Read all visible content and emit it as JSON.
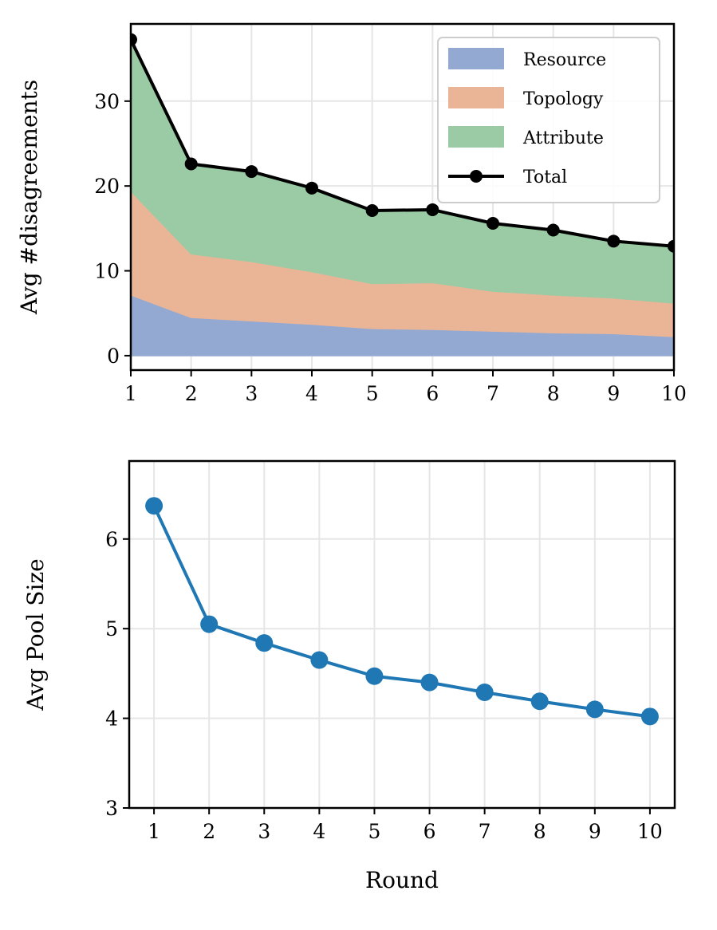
{
  "chart_data": [
    {
      "type": "area",
      "stacked": true,
      "xlabel": "",
      "ylabel": "Avg #disagreements",
      "x": [
        1,
        2,
        3,
        4,
        5,
        6,
        7,
        8,
        9,
        10
      ],
      "xlim": [
        1,
        10
      ],
      "ylim": [
        -1.7,
        39.1
      ],
      "xticks": [
        1,
        2,
        3,
        4,
        5,
        6,
        7,
        8,
        9,
        10
      ],
      "yticks": [
        0,
        10,
        20,
        30
      ],
      "grid": true,
      "legend": "top-right",
      "series": [
        {
          "name": "Resource",
          "color": "#93a9d2",
          "values": [
            7.15,
            4.5,
            4.1,
            3.7,
            3.2,
            3.1,
            2.9,
            2.7,
            2.6,
            2.25
          ]
        },
        {
          "name": "Topology",
          "color": "#eab597",
          "values": [
            12.25,
            7.5,
            7.0,
            6.2,
            5.3,
            5.5,
            4.7,
            4.45,
            4.2,
            3.95
          ]
        },
        {
          "name": "Attribute",
          "color": "#9acba4",
          "values": [
            17.85,
            10.6,
            10.6,
            9.85,
            8.6,
            8.6,
            8.0,
            7.65,
            6.7,
            6.7
          ]
        },
        {
          "name": "Total",
          "type": "line",
          "color": "#000000",
          "marker": "circle",
          "values": [
            37.25,
            22.6,
            21.7,
            19.75,
            17.1,
            17.2,
            15.6,
            14.8,
            13.5,
            12.9
          ]
        }
      ]
    },
    {
      "type": "line",
      "xlabel": "Round",
      "ylabel": "Avg Pool Size",
      "x": [
        1,
        2,
        3,
        4,
        5,
        6,
        7,
        8,
        9,
        10
      ],
      "xlim": [
        0.55,
        10.45
      ],
      "ylim": [
        3,
        6.87
      ],
      "xticks": [
        1,
        2,
        3,
        4,
        5,
        6,
        7,
        8,
        9,
        10
      ],
      "yticks": [
        3,
        4,
        5,
        6
      ],
      "grid": true,
      "series": [
        {
          "color": "#1f77b4",
          "marker": "circle",
          "values": [
            6.37,
            5.05,
            4.84,
            4.65,
            4.47,
            4.4,
            4.29,
            4.19,
            4.1,
            4.02
          ]
        }
      ]
    }
  ]
}
